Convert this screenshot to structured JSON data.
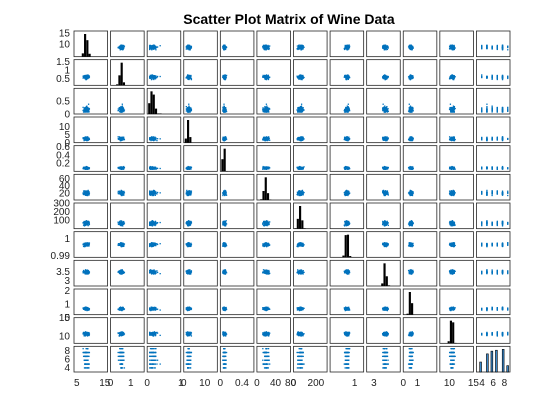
{
  "chart_data": {
    "type": "scatter",
    "title": "Scatter Plot Matrix of Wine Data",
    "variables": [
      {
        "index": 1,
        "range": [
          4,
          16
        ],
        "ticks": [
          10,
          15
        ],
        "xticks": [
          5,
          15
        ]
      },
      {
        "index": 2,
        "range": [
          0.1,
          1.6
        ],
        "ticks": [
          0.5,
          1,
          1.5
        ],
        "xticks": [
          0,
          1
        ]
      },
      {
        "index": 3,
        "range": [
          0,
          1
        ],
        "ticks": [
          0,
          0.5
        ],
        "xticks": [
          0,
          1
        ]
      },
      {
        "index": 4,
        "range": [
          0,
          16
        ],
        "ticks": [
          0,
          5,
          10
        ],
        "xticks": [
          0,
          10
        ]
      },
      {
        "index": 5,
        "range": [
          0,
          0.62
        ],
        "ticks": [
          0.2,
          0.4,
          0.6
        ],
        "xticks": [
          0,
          0.4
        ]
      },
      {
        "index": 6,
        "range": [
          0,
          72
        ],
        "ticks": [
          20,
          40,
          60
        ],
        "xticks": [
          0,
          40,
          80
        ]
      },
      {
        "index": 7,
        "range": [
          0,
          300
        ],
        "ticks": [
          100,
          200,
          300
        ],
        "xticks": [
          0,
          200
        ]
      },
      {
        "index": 8,
        "range": [
          0.989,
          1.004
        ],
        "ticks": [
          0.99,
          1
        ],
        "xticks": [
          1
        ]
      },
      {
        "index": 9,
        "range": [
          2.7,
          4.1
        ],
        "ticks": [
          3,
          3.5
        ],
        "xticks": [
          3
        ]
      },
      {
        "index": 10,
        "range": [
          0.2,
          2.1
        ],
        "ticks": [
          0,
          1,
          2
        ],
        "xticks": [
          0,
          1
        ]
      },
      {
        "index": 11,
        "range": [
          8,
          15
        ],
        "ticks": [
          10,
          15
        ],
        "xticks": [
          10,
          15
        ]
      },
      {
        "index": 12,
        "range": [
          3,
          9
        ],
        "ticks": [
          4,
          6,
          8
        ],
        "xticks": [
          4,
          6,
          8
        ]
      }
    ],
    "diagonal": "histogram",
    "point_color": "#0072BD",
    "histogram_color": "#000000",
    "last_histogram_color": "#3a87c8",
    "grid": false,
    "legend": "none"
  }
}
